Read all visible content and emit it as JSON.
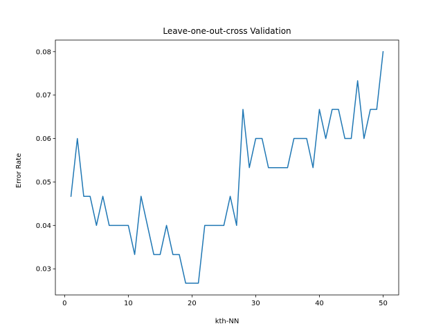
{
  "chart_data": {
    "type": "line",
    "title": "Leave-one-out-cross Validation",
    "xlabel": "kth-NN",
    "ylabel": "Error Rate",
    "xlim": [
      -1.45,
      52.45
    ],
    "ylim": [
      0.02399,
      0.08267
    ],
    "xticks": [
      0,
      10,
      20,
      30,
      40,
      50
    ],
    "yticks": [
      0.03,
      0.04,
      0.05,
      0.06,
      0.07,
      0.08
    ],
    "xtick_labels": [
      "0",
      "10",
      "20",
      "30",
      "40",
      "50"
    ],
    "ytick_labels": [
      "0.03",
      "0.04",
      "0.05",
      "0.06",
      "0.07",
      "0.08"
    ],
    "grid": false,
    "legend": "none",
    "series": [
      {
        "color": "#1f77b4",
        "x": [
          1,
          2,
          3,
          4,
          5,
          6,
          7,
          8,
          9,
          10,
          11,
          12,
          13,
          14,
          15,
          16,
          17,
          18,
          19,
          20,
          21,
          22,
          23,
          24,
          25,
          26,
          27,
          28,
          29,
          30,
          31,
          32,
          33,
          34,
          35,
          36,
          37,
          38,
          39,
          40,
          41,
          42,
          43,
          44,
          45,
          46,
          47,
          48,
          49,
          50
        ],
        "y": [
          0.0467,
          0.06,
          0.0467,
          0.0467,
          0.04,
          0.0467,
          0.04,
          0.04,
          0.04,
          0.04,
          0.0333,
          0.0467,
          0.04,
          0.0333,
          0.0333,
          0.04,
          0.0333,
          0.0333,
          0.0267,
          0.0267,
          0.0267,
          0.04,
          0.04,
          0.04,
          0.04,
          0.0467,
          0.04,
          0.0667,
          0.0533,
          0.06,
          0.06,
          0.0533,
          0.0533,
          0.0533,
          0.0533,
          0.06,
          0.06,
          0.06,
          0.0533,
          0.0667,
          0.06,
          0.0667,
          0.0667,
          0.06,
          0.06,
          0.0733,
          0.06,
          0.0667,
          0.0667,
          0.08
        ]
      }
    ]
  }
}
